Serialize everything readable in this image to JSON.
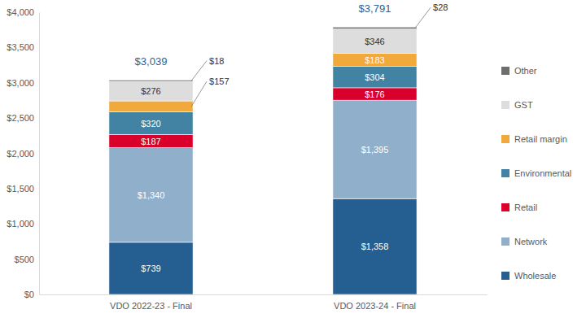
{
  "chart_data": {
    "type": "bar",
    "stacked": true,
    "data_labels": true,
    "legend": "right",
    "grid": false,
    "categories": [
      "VDO 2022-23 - Final",
      "VDO 2023-24 - Final"
    ],
    "series": [
      {
        "name": "Wholesale",
        "color": "#255e91",
        "values": [
          739,
          1358
        ],
        "value_labels": [
          "$739",
          "$1,358"
        ]
      },
      {
        "name": "Network",
        "color": "#8fafcb",
        "values": [
          1340,
          1395
        ],
        "value_labels": [
          "$1,340",
          "$1,395"
        ]
      },
      {
        "name": "Retail",
        "color": "#d9002b",
        "values": [
          187,
          176
        ],
        "value_labels": [
          "$187",
          "$176"
        ]
      },
      {
        "name": "Environmental",
        "color": "#4283a3",
        "values": [
          320,
          304
        ],
        "value_labels": [
          "$320",
          "$304"
        ]
      },
      {
        "name": "Retail margin",
        "color": "#f2a93b",
        "values": [
          157,
          183
        ],
        "value_labels": [
          "$157",
          "$183"
        ]
      },
      {
        "name": "GST",
        "color": "#dddddd",
        "values": [
          276,
          346
        ],
        "value_labels": [
          "$276",
          "$346"
        ]
      },
      {
        "name": "Other",
        "color": "#6e6e6e",
        "values": [
          18,
          28
        ],
        "value_labels": [
          "$18",
          "$28"
        ]
      }
    ],
    "totals": [
      3039,
      3791
    ],
    "total_labels": [
      "$3,039",
      "$3,791"
    ],
    "ylim": [
      0,
      4000
    ],
    "yticks": [
      {
        "value": 0,
        "label": "$0"
      },
      {
        "value": 500,
        "label": "$500"
      },
      {
        "value": 1000,
        "label": "$1,000"
      },
      {
        "value": 1500,
        "label": "$1,500"
      },
      {
        "value": 2000,
        "label": "$2,000"
      },
      {
        "value": 2500,
        "label": "$2,500"
      },
      {
        "value": 3000,
        "label": "$3,000"
      },
      {
        "value": 3500,
        "label": "$3,500"
      },
      {
        "value": 4000,
        "label": "$4,000"
      }
    ]
  }
}
